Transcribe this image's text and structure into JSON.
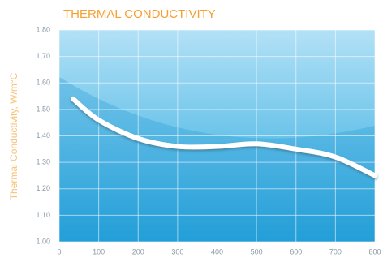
{
  "chart_data": {
    "type": "line",
    "title": "THERMAL CONDUCTIVITY",
    "y_label": "Thermal Conductivity, W/m°C",
    "x": [
      35,
      100,
      200,
      300,
      400,
      500,
      600,
      700,
      800
    ],
    "values": [
      1.54,
      1.46,
      1.39,
      1.36,
      1.36,
      1.37,
      1.35,
      1.32,
      1.25
    ],
    "color": "#ffffff",
    "xlim": [
      0,
      800
    ],
    "xticks": [
      0,
      100,
      200,
      300,
      400,
      500,
      600,
      700,
      800
    ],
    "ylim": [
      1.0,
      1.8
    ],
    "yticks": [
      {
        "value": 1.0,
        "label": "1,00"
      },
      {
        "value": 1.1,
        "label": "1,10"
      },
      {
        "value": 1.2,
        "label": "1,20"
      },
      {
        "value": 1.3,
        "label": "1,30"
      },
      {
        "value": 1.4,
        "label": "1,40"
      },
      {
        "value": 1.5,
        "label": "1,50"
      },
      {
        "value": 1.6,
        "label": "1,60"
      },
      {
        "value": 1.7,
        "label": "1,70"
      },
      {
        "value": 1.8,
        "label": "1,80"
      }
    ],
    "grid": true
  }
}
